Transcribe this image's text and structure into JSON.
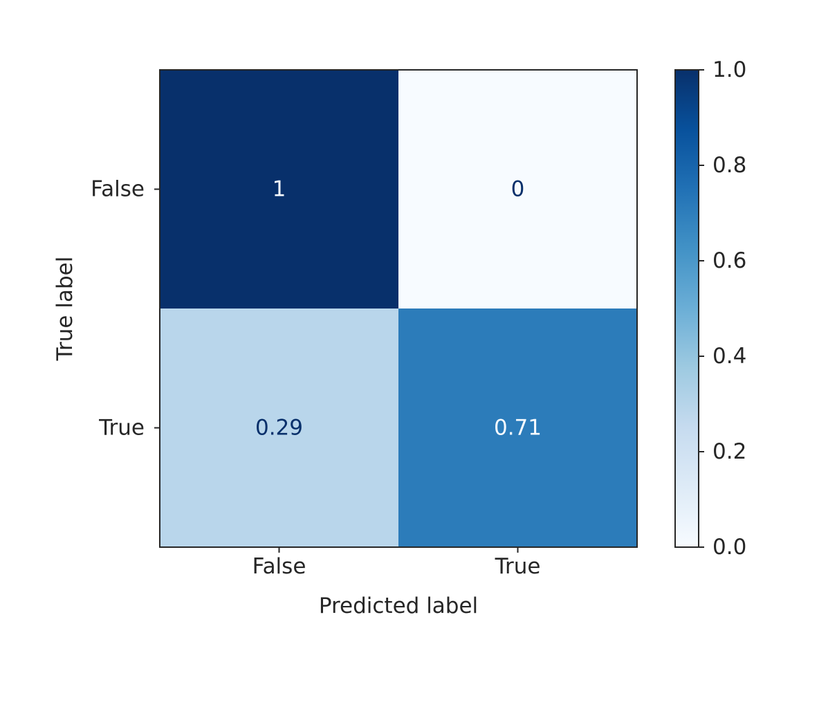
{
  "chart_data": {
    "type": "heatmap",
    "title": "",
    "xlabel": "Predicted label",
    "ylabel": "True label",
    "x_categories": [
      "False",
      "True"
    ],
    "y_categories": [
      "False",
      "True"
    ],
    "values": [
      [
        1,
        0
      ],
      [
        0.29,
        0.71
      ]
    ],
    "cell_labels": [
      [
        "1",
        "0"
      ],
      [
        "0.29",
        "0.71"
      ]
    ],
    "colormap": "Blues",
    "colorbar": {
      "range": [
        0.0,
        1.0
      ],
      "ticks": [
        0.0,
        0.2,
        0.4,
        0.6,
        0.8,
        1.0
      ],
      "tick_labels": [
        "0.0",
        "0.2",
        "0.4",
        "0.6",
        "0.8",
        "1.0"
      ]
    },
    "grid": false,
    "legend": "none"
  }
}
